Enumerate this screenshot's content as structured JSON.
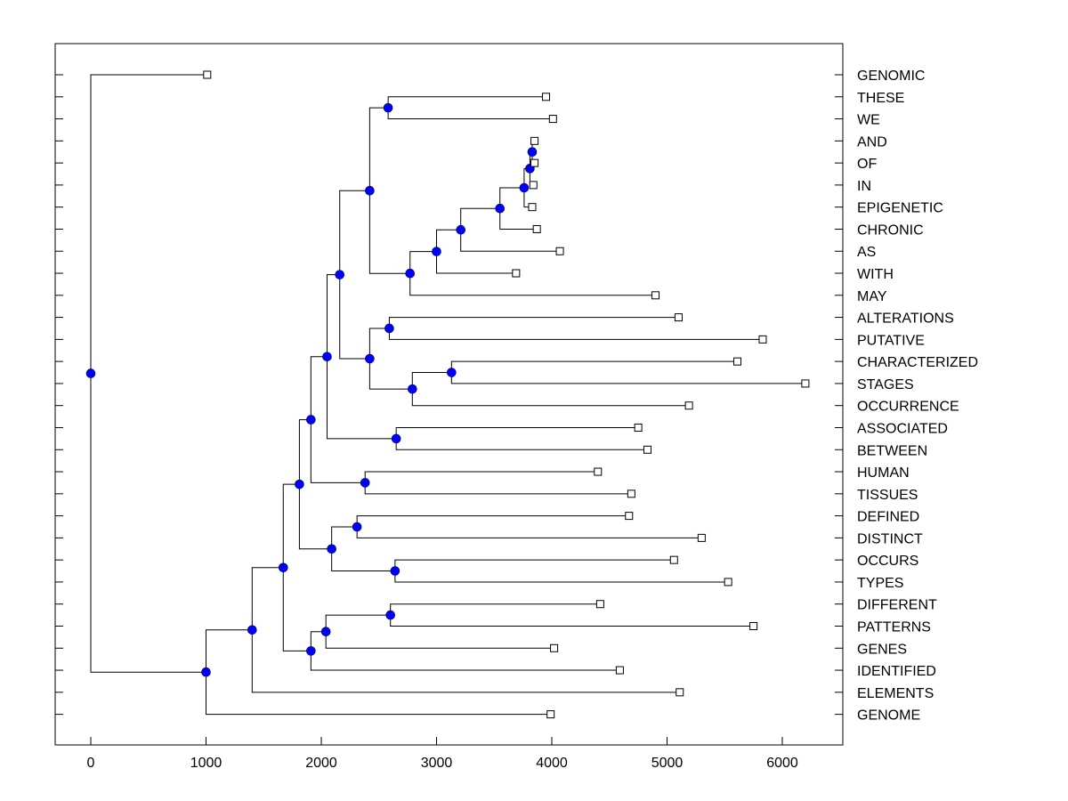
{
  "chart_data": {
    "type": "dendrogram",
    "title": "",
    "xlabel": "",
    "ylabel": "",
    "xlim": [
      -300,
      6500
    ],
    "x_ticks": [
      0,
      1000,
      2000,
      3000,
      4000,
      5000,
      6000
    ],
    "x_tick_labels": [
      "0",
      "1000",
      "2000",
      "3000",
      "4000",
      "5000",
      "6000"
    ],
    "grid": false,
    "legend": "none",
    "colors": {
      "node_fill": "#0000ff",
      "leaf_fill": "#ffffff",
      "line": "#000000"
    },
    "leaves": [
      {
        "label": "GENOMIC",
        "x": 1010
      },
      {
        "label": "THESE",
        "x": 3950
      },
      {
        "label": "WE",
        "x": 4010
      },
      {
        "label": "AND",
        "x": 3850
      },
      {
        "label": "OF",
        "x": 3850
      },
      {
        "label": "IN",
        "x": 3840
      },
      {
        "label": "EPIGENETIC",
        "x": 3830
      },
      {
        "label": "CHRONIC",
        "x": 3870
      },
      {
        "label": "AS",
        "x": 4070
      },
      {
        "label": "WITH",
        "x": 3690
      },
      {
        "label": "MAY",
        "x": 4900
      },
      {
        "label": "ALTERATIONS",
        "x": 5100
      },
      {
        "label": "PUTATIVE",
        "x": 5830
      },
      {
        "label": "CHARACTERIZED",
        "x": 5610
      },
      {
        "label": "STAGES",
        "x": 6200
      },
      {
        "label": "OCCURRENCE",
        "x": 5190
      },
      {
        "label": "ASSOCIATED",
        "x": 4750
      },
      {
        "label": "BETWEEN",
        "x": 4830
      },
      {
        "label": "HUMAN",
        "x": 4400
      },
      {
        "label": "TISSUES",
        "x": 4690
      },
      {
        "label": "DEFINED",
        "x": 4670
      },
      {
        "label": "DISTINCT",
        "x": 5300
      },
      {
        "label": "OCCURS",
        "x": 5060
      },
      {
        "label": "TYPES",
        "x": 5530
      },
      {
        "label": "DIFFERENT",
        "x": 4420
      },
      {
        "label": "PATTERNS",
        "x": 5750
      },
      {
        "label": "GENES",
        "x": 4020
      },
      {
        "label": "IDENTIFIED",
        "x": 4590
      },
      {
        "label": "ELEMENTS",
        "x": 5110
      },
      {
        "label": "GENOME",
        "x": 3990
      }
    ],
    "nodes": [
      {
        "id": "n1",
        "x": 3830,
        "children": [
          "L3",
          "L4"
        ]
      },
      {
        "id": "n2",
        "x": 3810,
        "children": [
          "n1",
          "L5"
        ]
      },
      {
        "id": "n3",
        "x": 3760,
        "children": [
          "n2",
          "L6"
        ]
      },
      {
        "id": "n4",
        "x": 3550,
        "children": [
          "n3",
          "L7"
        ]
      },
      {
        "id": "n5",
        "x": 3210,
        "children": [
          "n4",
          "L8"
        ]
      },
      {
        "id": "n6",
        "x": 3000,
        "children": [
          "n5",
          "L9"
        ]
      },
      {
        "id": "n7",
        "x": 2770,
        "children": [
          "n6",
          "L10"
        ]
      },
      {
        "id": "n8",
        "x": 2580,
        "children": [
          "L1",
          "L2"
        ]
      },
      {
        "id": "n9",
        "x": 2420,
        "children": [
          "n8",
          "n7"
        ]
      },
      {
        "id": "n10",
        "x": 2590,
        "children": [
          "L11",
          "L12"
        ]
      },
      {
        "id": "n11",
        "x": 3130,
        "children": [
          "L13",
          "L14"
        ]
      },
      {
        "id": "n12",
        "x": 2790,
        "children": [
          "n11",
          "L15"
        ]
      },
      {
        "id": "n13",
        "x": 2420,
        "children": [
          "n10",
          "n12"
        ]
      },
      {
        "id": "n14",
        "x": 2160,
        "children": [
          "n9",
          "n13"
        ]
      },
      {
        "id": "n15",
        "x": 2650,
        "children": [
          "L16",
          "L17"
        ]
      },
      {
        "id": "n16",
        "x": 2050,
        "children": [
          "n14",
          "n15"
        ]
      },
      {
        "id": "n17",
        "x": 2380,
        "children": [
          "L18",
          "L19"
        ]
      },
      {
        "id": "n18",
        "x": 1910,
        "children": [
          "n16",
          "n17"
        ]
      },
      {
        "id": "n19",
        "x": 2310,
        "children": [
          "L20",
          "L21"
        ]
      },
      {
        "id": "n20",
        "x": 2640,
        "children": [
          "L22",
          "L23"
        ]
      },
      {
        "id": "n21",
        "x": 2090,
        "children": [
          "n19",
          "n20"
        ]
      },
      {
        "id": "n22",
        "x": 1810,
        "children": [
          "n18",
          "n21"
        ]
      },
      {
        "id": "n23",
        "x": 2600,
        "children": [
          "L24",
          "L25"
        ]
      },
      {
        "id": "n24",
        "x": 2040,
        "children": [
          "n23",
          "L26"
        ]
      },
      {
        "id": "n25",
        "x": 1910,
        "children": [
          "n24",
          "L27"
        ]
      },
      {
        "id": "n26",
        "x": 1670,
        "children": [
          "n22",
          "n25"
        ]
      },
      {
        "id": "n27",
        "x": 1400,
        "children": [
          "n26",
          "L28"
        ]
      },
      {
        "id": "n28",
        "x": 1000,
        "children": [
          "n27",
          "L29"
        ]
      },
      {
        "id": "n29",
        "x": 0,
        "children": [
          "L0",
          "n28"
        ]
      }
    ]
  }
}
